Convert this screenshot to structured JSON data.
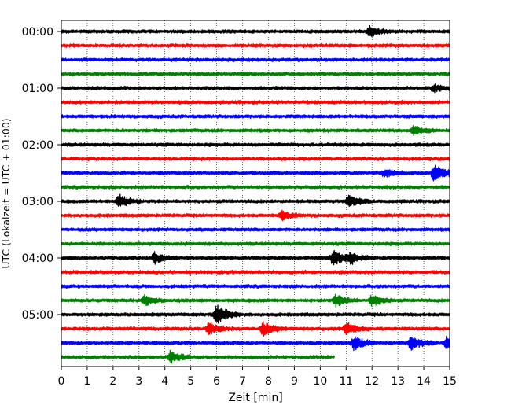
{
  "chart_data": {
    "type": "line",
    "title": "",
    "xlabel": "Zeit  [min]",
    "ylabel": "UTC (Lokalzeit = UTC + 01:00)",
    "xlim": [
      0,
      15
    ],
    "x_ticks": [
      "0",
      "1",
      "2",
      "3",
      "4",
      "5",
      "6",
      "7",
      "8",
      "9",
      "10",
      "11",
      "12",
      "13",
      "14",
      "15"
    ],
    "y_tick_labels": [
      "00:00",
      "01:00",
      "02:00",
      "03:00",
      "04:00",
      "05:00"
    ],
    "grid": "vertical dotted",
    "trace_interval_min": 15,
    "trace_colors": [
      "#000000",
      "#ff0000",
      "#0000ff",
      "#008000"
    ],
    "traces": [
      {
        "start": "00:00",
        "end_min": 15,
        "color": "#000000",
        "events": [
          {
            "t": 11.9,
            "amp": 0.35
          }
        ]
      },
      {
        "start": "00:15",
        "end_min": 15,
        "color": "#ff0000",
        "events": []
      },
      {
        "start": "00:30",
        "end_min": 15,
        "color": "#0000ff",
        "events": []
      },
      {
        "start": "00:45",
        "end_min": 15,
        "color": "#008000",
        "events": []
      },
      {
        "start": "01:00",
        "end_min": 15,
        "color": "#000000",
        "events": [
          {
            "t": 14.4,
            "amp": 0.25
          }
        ]
      },
      {
        "start": "01:15",
        "end_min": 15,
        "color": "#ff0000",
        "events": []
      },
      {
        "start": "01:30",
        "end_min": 15,
        "color": "#0000ff",
        "events": []
      },
      {
        "start": "01:45",
        "end_min": 15,
        "color": "#008000",
        "events": [
          {
            "t": 13.6,
            "amp": 0.3
          }
        ]
      },
      {
        "start": "02:00",
        "end_min": 15,
        "color": "#000000",
        "events": []
      },
      {
        "start": "02:15",
        "end_min": 15,
        "color": "#ff0000",
        "events": []
      },
      {
        "start": "02:30",
        "end_min": 15,
        "color": "#0000ff",
        "events": [
          {
            "t": 14.4,
            "amp": 0.65
          },
          {
            "t": 12.5,
            "amp": 0.25
          }
        ]
      },
      {
        "start": "02:45",
        "end_min": 15,
        "color": "#008000",
        "events": []
      },
      {
        "start": "03:00",
        "end_min": 15,
        "color": "#000000",
        "events": [
          {
            "t": 2.2,
            "amp": 0.5
          },
          {
            "t": 11.1,
            "amp": 0.4
          }
        ]
      },
      {
        "start": "03:15",
        "end_min": 15,
        "color": "#ff0000",
        "events": [
          {
            "t": 8.5,
            "amp": 0.3
          }
        ]
      },
      {
        "start": "03:30",
        "end_min": 15,
        "color": "#0000ff",
        "events": []
      },
      {
        "start": "03:45",
        "end_min": 15,
        "color": "#008000",
        "events": []
      },
      {
        "start": "04:00",
        "end_min": 15,
        "color": "#000000",
        "events": [
          {
            "t": 3.6,
            "amp": 0.35
          },
          {
            "t": 10.5,
            "amp": 0.6
          },
          {
            "t": 11.2,
            "amp": 0.35
          }
        ]
      },
      {
        "start": "04:15",
        "end_min": 15,
        "color": "#ff0000",
        "events": []
      },
      {
        "start": "04:30",
        "end_min": 15,
        "color": "#0000ff",
        "events": []
      },
      {
        "start": "04:45",
        "end_min": 15,
        "color": "#008000",
        "events": [
          {
            "t": 3.2,
            "amp": 0.35
          },
          {
            "t": 10.6,
            "amp": 0.4
          },
          {
            "t": 12.0,
            "amp": 0.4
          }
        ]
      },
      {
        "start": "05:00",
        "end_min": 15,
        "color": "#000000",
        "events": [
          {
            "t": 6.0,
            "amp": 0.7
          }
        ]
      },
      {
        "start": "05:15",
        "end_min": 15,
        "color": "#ff0000",
        "events": [
          {
            "t": 5.7,
            "amp": 0.4
          },
          {
            "t": 7.8,
            "amp": 0.45
          },
          {
            "t": 11.0,
            "amp": 0.45
          }
        ]
      },
      {
        "start": "05:30",
        "end_min": 15,
        "color": "#0000ff",
        "events": [
          {
            "t": 11.3,
            "amp": 0.5
          },
          {
            "t": 13.5,
            "amp": 0.5
          },
          {
            "t": 14.9,
            "amp": 0.45
          }
        ]
      },
      {
        "start": "05:45",
        "end_min": 10.55,
        "color": "#008000",
        "events": [
          {
            "t": 4.2,
            "amp": 0.4
          }
        ]
      }
    ]
  }
}
